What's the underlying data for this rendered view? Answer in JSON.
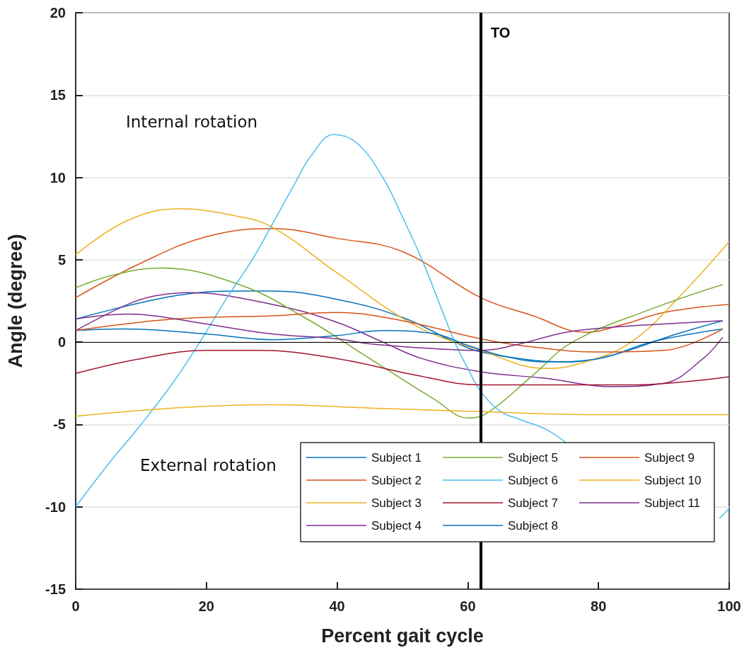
{
  "chart_data": {
    "type": "line",
    "xlabel": "Percent gait cycle",
    "ylabel": "Angle (degree)",
    "xlim": [
      0,
      100
    ],
    "xticks": [
      0,
      20,
      40,
      60,
      80,
      100
    ],
    "ylim": [
      -15,
      20
    ],
    "yticks": [
      -15,
      -10,
      -5,
      0,
      5,
      10,
      15,
      20
    ],
    "grid": "y",
    "legend": "bottom right",
    "line_style": "solid",
    "marker": "none",
    "annotations": [
      "Internal rotation",
      "External rotation"
    ],
    "ref_lines": [
      {
        "axis": "x",
        "value": 62,
        "label": "TO",
        "color": "#000000"
      },
      {
        "axis": "y",
        "value": 0,
        "label": null,
        "color": "#000000"
      }
    ],
    "series": [
      {
        "name": "Subject 1",
        "color": "#0072bd",
        "x": [
          0,
          15,
          25,
          30,
          40,
          50,
          58,
          62,
          70,
          75,
          82,
          92,
          99
        ],
        "values": [
          1.4,
          2.8,
          3.1,
          3.1,
          2.6,
          1.5,
          0,
          -0.6,
          -1.1,
          -1.2,
          -0.8,
          0.5,
          1.3
        ]
      },
      {
        "name": "Subject 2",
        "color": "#d95319",
        "x": [
          0,
          10,
          20,
          30,
          40,
          50,
          62,
          70,
          78,
          84,
          90,
          100
        ],
        "values": [
          2.7,
          4.8,
          6.4,
          6.9,
          6.3,
          5.5,
          2.7,
          1.6,
          0.6,
          1.1,
          1.8,
          2.3
        ]
      },
      {
        "name": "Subject 3",
        "color": "#edb120",
        "x": [
          0,
          8,
          16,
          24,
          30,
          40,
          52,
          62,
          72,
          78,
          85,
          92,
          100
        ],
        "values": [
          5.3,
          7.4,
          8.1,
          7.7,
          7,
          4.2,
          1,
          -0.5,
          -1.6,
          -1.2,
          0,
          2.6,
          6.1
        ]
      },
      {
        "name": "Subject 4",
        "color": "#7e2f8e",
        "x": [
          0,
          8,
          12,
          17,
          30,
          40,
          47,
          53,
          62,
          72,
          82,
          90,
          96,
          99
        ],
        "values": [
          0.7,
          2.3,
          2.8,
          3,
          2.3,
          1.2,
          0,
          -1,
          -1.8,
          -2.2,
          -2.7,
          -2.5,
          -1,
          0.3
        ]
      },
      {
        "name": "Subject 5",
        "color": "#77ac30",
        "x": [
          0,
          6,
          13,
          25,
          35,
          45,
          55,
          60,
          63,
          70,
          76,
          88,
          99
        ],
        "values": [
          3.3,
          4.1,
          4.5,
          3.5,
          1.5,
          -1,
          -3.5,
          -4.6,
          -4.3,
          -2,
          0,
          2,
          3.5
        ]
      },
      {
        "name": "Subject 6",
        "color": "#4dbeee",
        "x": [
          0,
          5,
          10,
          15,
          19,
          23,
          27,
          30,
          33.5,
          36,
          39.5,
          43,
          47,
          50,
          53,
          56,
          58,
          60,
          62,
          65,
          68,
          72,
          75,
          85,
          98.5,
          100
        ],
        "values": [
          -10,
          -7.4,
          -5,
          -2.4,
          0,
          2.6,
          5,
          7.1,
          9.6,
          11.3,
          12.6,
          12.1,
          10,
          7.6,
          5,
          2,
          0,
          -1.6,
          -3,
          -4.2,
          -4.7,
          -5.3,
          -6.1,
          null,
          -10.7,
          -10.1
        ]
      },
      {
        "name": "Subject 7",
        "color": "#a2142f",
        "x": [
          0,
          10,
          20,
          28,
          40,
          52,
          62,
          75,
          85,
          100
        ],
        "values": [
          -1.9,
          -1,
          -0.5,
          -0.5,
          -1,
          -2,
          -2.6,
          -2.6,
          -2.6,
          -2.1
        ]
      },
      {
        "name": "Subject 8",
        "color": "#0072bd",
        "x": [
          0,
          7,
          20,
          30,
          40,
          47,
          55,
          60,
          66,
          72,
          80,
          88,
          99
        ],
        "values": [
          0.7,
          0.8,
          0.5,
          0.15,
          0.4,
          0.7,
          0.5,
          -0.2,
          -0.9,
          -1.2,
          -1,
          0,
          0.8
        ]
      },
      {
        "name": "Subject 9",
        "color": "#d95319",
        "x": [
          0,
          15,
          30,
          40,
          50,
          62,
          70,
          80,
          90,
          99
        ],
        "values": [
          0.7,
          1.4,
          1.6,
          1.8,
          1.3,
          0.2,
          -0.3,
          -0.6,
          -0.5,
          0.8
        ]
      },
      {
        "name": "Subject 10",
        "color": "#edb120",
        "x": [
          0,
          15,
          30,
          45,
          60,
          80,
          100
        ],
        "values": [
          -4.5,
          -4,
          -3.8,
          -4,
          -4.2,
          -4.4,
          -4.4
        ]
      },
      {
        "name": "Subject 11",
        "color": "#7e2f8e",
        "x": [
          0,
          8,
          12,
          20,
          30,
          40,
          45,
          55,
          62,
          68,
          75,
          82,
          90,
          99
        ],
        "values": [
          1.4,
          1.7,
          1.6,
          1.1,
          0.5,
          0.2,
          -0.1,
          -0.4,
          -0.5,
          -0.1,
          0.6,
          0.9,
          1.1,
          1.3
        ]
      }
    ]
  }
}
